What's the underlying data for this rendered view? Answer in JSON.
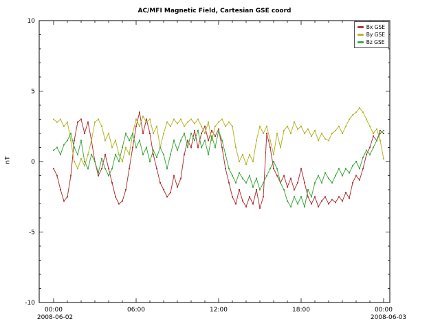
{
  "chart_data": {
    "type": "line",
    "title": "AC/MFI  Magnetic Field, Cartesian GSE coord",
    "xlabel": "",
    "ylabel": "nT",
    "ylim": [
      -10,
      10
    ],
    "y_major_ticks": [
      -10,
      -5,
      0,
      5,
      10
    ],
    "xlim_hours": [
      0,
      24
    ],
    "x_tick_hours": [
      0,
      6,
      12,
      18,
      24
    ],
    "x_tick_labels": [
      "00:00",
      "06:00",
      "12:00",
      "18:00",
      "00:00"
    ],
    "x_start_date": "2008-06-02",
    "x_end_date": "2008-06-03",
    "legend_position": "top-right",
    "grid": false,
    "x_start_hour": 0,
    "x_step_hours": 0.25,
    "series": [
      {
        "name": "Bx GSE",
        "color": "#b23434",
        "values": [
          -0.5,
          -1.0,
          -2.0,
          -2.8,
          -2.5,
          -1.0,
          1.5,
          2.8,
          3.0,
          2.0,
          2.8,
          1.5,
          0.0,
          -1.0,
          -0.5,
          0.5,
          -0.5,
          -1.5,
          -2.5,
          -3.0,
          -2.8,
          -2.0,
          -0.5,
          1.0,
          2.5,
          3.5,
          2.0,
          3.0,
          2.0,
          0.5,
          -0.5,
          -1.5,
          -2.0,
          -2.5,
          -2.2,
          -1.0,
          -1.8,
          -1.2,
          0.5,
          1.5,
          1.0,
          2.2,
          1.0,
          2.0,
          2.5,
          1.5,
          2.2,
          1.8,
          2.3,
          1.0,
          -0.5,
          -1.5,
          -2.5,
          -3.0,
          -2.0,
          -2.8,
          -3.2,
          -2.5,
          -3.0,
          -2.0,
          -3.3,
          -2.5,
          2.0,
          1.0,
          -0.5,
          -1.0,
          -1.5,
          -1.0,
          -1.8,
          -1.2,
          -2.0,
          -1.5,
          -0.5,
          -1.5,
          -2.5,
          -3.0,
          -2.5,
          -3.2,
          -2.8,
          -2.5,
          -3.0,
          -2.7,
          -2.9,
          -2.5,
          -2.8,
          -2.2,
          -2.6,
          -1.5,
          -1.0,
          -1.3,
          -0.5,
          0.5,
          1.0,
          1.8,
          1.5,
          2.2,
          2.0
        ]
      },
      {
        "name": "By GSE",
        "color": "#b5b52e",
        "values": [
          3.0,
          2.8,
          3.0,
          2.5,
          2.8,
          1.5,
          0.0,
          -0.5,
          0.2,
          -0.3,
          0.5,
          1.5,
          2.8,
          3.0,
          2.5,
          1.5,
          2.0,
          1.0,
          1.5,
          0.5,
          0.0,
          1.0,
          0.5,
          2.0,
          3.0,
          2.5,
          3.2,
          2.8,
          3.0,
          2.0,
          2.5,
          1.0,
          2.0,
          2.8,
          2.5,
          3.0,
          2.7,
          3.0,
          2.5,
          2.8,
          3.0,
          2.7,
          3.0,
          2.5,
          2.0,
          2.8,
          1.5,
          2.5,
          2.8,
          3.0,
          2.5,
          2.8,
          2.5,
          1.0,
          0.0,
          0.5,
          -0.2,
          0.5,
          0.0,
          1.5,
          2.5,
          2.0,
          2.5,
          1.5,
          0.5,
          2.0,
          1.0,
          2.2,
          2.5,
          2.0,
          2.8,
          2.3,
          2.5,
          2.0,
          2.3,
          1.8,
          2.2,
          1.5,
          2.0,
          1.6,
          1.5,
          2.0,
          2.2,
          2.5,
          2.0,
          2.5,
          3.0,
          3.3,
          3.5,
          3.8,
          3.5,
          3.0,
          2.5,
          2.0,
          2.3,
          1.5,
          0.2
        ]
      },
      {
        "name": "Bz GSE",
        "color": "#3fa83f",
        "values": [
          0.8,
          1.0,
          0.5,
          1.2,
          1.5,
          2.0,
          1.0,
          0.5,
          1.5,
          0.0,
          -0.5,
          0.5,
          0.0,
          -0.8,
          0.2,
          -0.5,
          -1.0,
          -0.5,
          0.5,
          0.0,
          1.0,
          2.0,
          1.5,
          2.0,
          1.0,
          1.5,
          0.5,
          1.0,
          0.0,
          0.8,
          0.3,
          1.0,
          0.5,
          -0.5,
          0.5,
          1.5,
          0.8,
          1.5,
          2.0,
          1.0,
          2.0,
          1.5,
          2.2,
          1.0,
          1.5,
          0.5,
          1.8,
          1.0,
          2.2,
          1.5,
          0.5,
          -0.5,
          -1.0,
          -1.5,
          -0.8,
          -1.2,
          -1.5,
          -1.0,
          -1.8,
          -1.2,
          -2.0,
          -1.5,
          -1.0,
          -0.5,
          0.0,
          -0.5,
          -1.5,
          -2.0,
          -2.8,
          -3.2,
          -2.5,
          -3.0,
          -2.5,
          -3.2,
          -2.0,
          -2.5,
          -1.5,
          -1.0,
          -1.5,
          -0.8,
          -1.2,
          -1.5,
          -1.0,
          -0.5,
          -1.0,
          -0.5,
          -0.8,
          -0.3,
          0.0,
          -0.5,
          0.3,
          0.8,
          0.5,
          1.0,
          1.5,
          2.0,
          2.2
        ]
      }
    ]
  }
}
